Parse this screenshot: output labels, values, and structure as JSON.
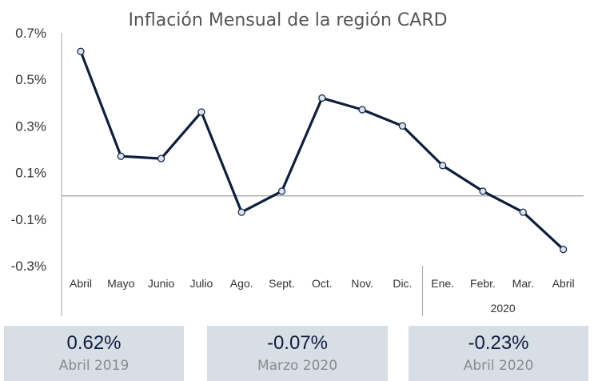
{
  "chart_data": {
    "type": "line",
    "title": "Inflación Mensual de la región CARD",
    "categories": [
      "Abril",
      "Mayo",
      "Junio",
      "Julio",
      "Ago.",
      "Sept.",
      "Oct.",
      "Nov.",
      "Dic.",
      "Ene.",
      "Febr.",
      "Mar.",
      "Abril"
    ],
    "year_group": {
      "label": "2020",
      "start_index": 9
    },
    "y_ticks": [
      "0.7%",
      "0.5%",
      "0.3%",
      "0.1%",
      "-0.1%",
      "-0.3%"
    ],
    "ylim": [
      -0.3,
      0.7
    ],
    "series": [
      {
        "values": [
          0.62,
          0.17,
          0.16,
          0.36,
          -0.07,
          0.02,
          0.42,
          0.37,
          0.3,
          0.13,
          0.02,
          -0.07,
          -0.23
        ]
      }
    ],
    "colors": {
      "line": "#0e1f3e",
      "marker_fill": "#d9e2f0",
      "zero_line": "#a6a6a6",
      "axis": "#a6a6a6"
    }
  },
  "cards": [
    {
      "value": "0.62%",
      "label": "Abril 2019"
    },
    {
      "value": "-0.07%",
      "label": "Marzo 2020"
    },
    {
      "value": "-0.23%",
      "label": "Abril 2020"
    }
  ]
}
